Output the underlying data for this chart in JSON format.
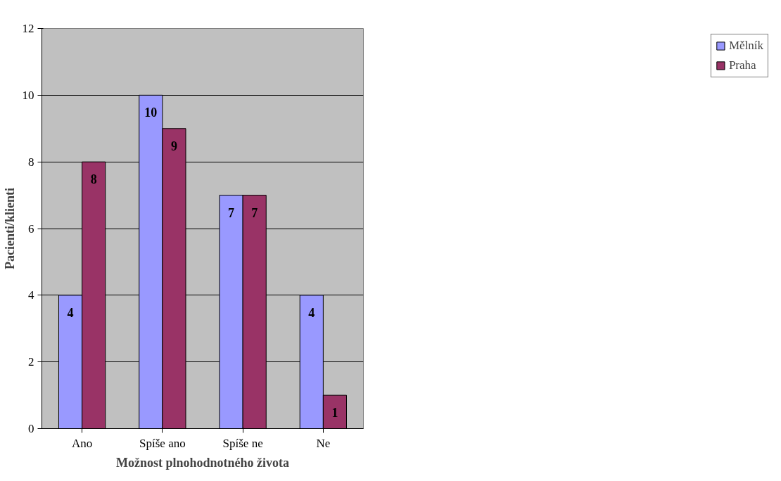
{
  "chart_data": {
    "type": "bar",
    "xlabel": "Možnost plnohodnotného života",
    "ylabel": "Pacienti/klienti",
    "categories": [
      "Ano",
      "Spíše ano",
      "Spíše ne",
      "Ne"
    ],
    "series": [
      {
        "name": "Mělník",
        "color": "#9999ff",
        "values": [
          4,
          10,
          7,
          4
        ]
      },
      {
        "name": "Praha",
        "color": "#993366",
        "values": [
          8,
          9,
          7,
          1
        ]
      }
    ],
    "ylim": [
      0,
      12
    ],
    "yticks": [
      0,
      2,
      4,
      6,
      8,
      10,
      12
    ],
    "grid": "y",
    "legend": "right",
    "data_labels": true
  }
}
